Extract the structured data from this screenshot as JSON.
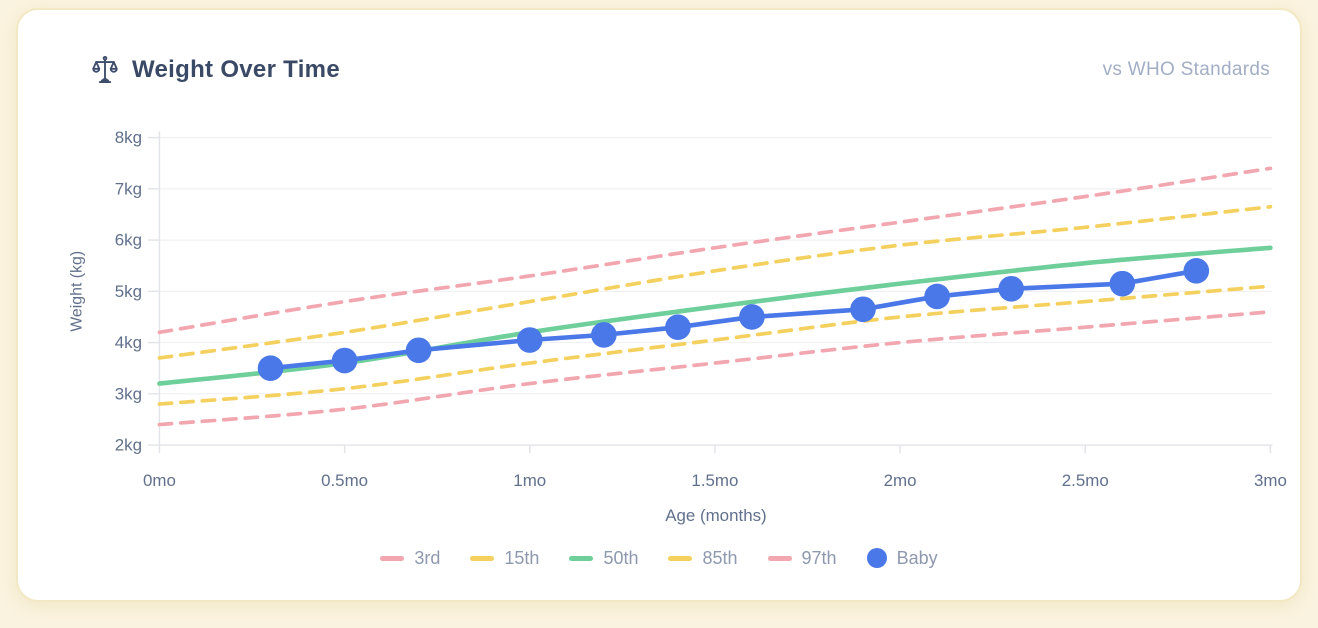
{
  "card": {
    "title": "Weight Over Time",
    "subtitle": "vs WHO Standards",
    "icon": "balance-scale-icon"
  },
  "colors": {
    "page_background": "#faf3df",
    "card_background": "#ffffff",
    "card_border": "#f3e8c4",
    "title_text": "#3a4a66",
    "subtitle_text": "#a2aec5",
    "tick_text": "#61708c",
    "axis_title_text": "#61708c",
    "legend_text": "#8e99ae",
    "grid_line": "#f1f1f4",
    "axis_line": "#e3e4e9",
    "p3": "#f2a6af",
    "p15": "#f4d05e",
    "p50": "#6ecf9a",
    "p85": "#f4d05e",
    "p97": "#f2a6af",
    "baby": "#4a78e8"
  },
  "chart_data": {
    "type": "line",
    "title": "Weight Over Time",
    "xlabel": "Age (months)",
    "ylabel": "Weight (kg)",
    "xlim": [
      0,
      3
    ],
    "ylim": [
      2,
      8
    ],
    "grid": true,
    "legend_position": "bottom",
    "x_tick_values": [
      0,
      0.5,
      1,
      1.5,
      2,
      2.5,
      3
    ],
    "x_tick_labels": [
      "0mo",
      "0.5mo",
      "1mo",
      "1.5mo",
      "2mo",
      "2.5mo",
      "3mo"
    ],
    "y_tick_values": [
      2,
      3,
      4,
      5,
      6,
      7,
      8
    ],
    "y_tick_labels": [
      "2kg",
      "3kg",
      "4kg",
      "5kg",
      "6kg",
      "7kg",
      "8kg"
    ],
    "who_x": [
      0,
      0.5,
      1,
      1.5,
      2,
      2.5,
      3
    ],
    "series": [
      {
        "name": "3rd",
        "style": "dashed",
        "color_key": "p3",
        "values": [
          2.4,
          2.7,
          3.2,
          3.6,
          4.0,
          4.3,
          4.6
        ]
      },
      {
        "name": "15th",
        "style": "dashed",
        "color_key": "p15",
        "values": [
          2.8,
          3.1,
          3.6,
          4.05,
          4.5,
          4.8,
          5.1
        ]
      },
      {
        "name": "50th",
        "style": "solid",
        "color_key": "p50",
        "values": [
          3.2,
          3.6,
          4.2,
          4.7,
          5.15,
          5.55,
          5.85
        ]
      },
      {
        "name": "85th",
        "style": "dashed",
        "color_key": "p85",
        "values": [
          3.7,
          4.2,
          4.8,
          5.4,
          5.9,
          6.25,
          6.65
        ]
      },
      {
        "name": "97th",
        "style": "dashed",
        "color_key": "p97",
        "values": [
          4.2,
          4.8,
          5.3,
          5.85,
          6.35,
          6.85,
          7.4
        ]
      }
    ],
    "baby": {
      "name": "Baby",
      "color_key": "baby",
      "points": [
        {
          "age": 0.3,
          "kg": 3.5
        },
        {
          "age": 0.5,
          "kg": 3.65
        },
        {
          "age": 0.7,
          "kg": 3.85
        },
        {
          "age": 1.0,
          "kg": 4.05
        },
        {
          "age": 1.2,
          "kg": 4.15
        },
        {
          "age": 1.4,
          "kg": 4.3
        },
        {
          "age": 1.6,
          "kg": 4.5
        },
        {
          "age": 1.9,
          "kg": 4.65
        },
        {
          "age": 2.1,
          "kg": 4.9
        },
        {
          "age": 2.3,
          "kg": 5.05
        },
        {
          "age": 2.6,
          "kg": 5.15
        },
        {
          "age": 2.8,
          "kg": 5.4
        }
      ]
    },
    "legend": [
      "3rd",
      "15th",
      "50th",
      "85th",
      "97th",
      "Baby"
    ]
  }
}
